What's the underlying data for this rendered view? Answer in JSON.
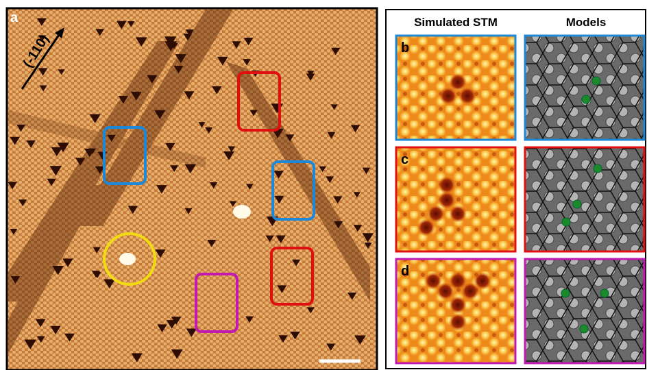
{
  "panel_a": {
    "label": "a",
    "direction": "(-110)"
  },
  "right_panel": {
    "headers": [
      "Simulated STM",
      "Models"
    ],
    "rows": [
      {
        "label": "b"
      },
      {
        "label": "c"
      },
      {
        "label": "d"
      }
    ]
  }
}
